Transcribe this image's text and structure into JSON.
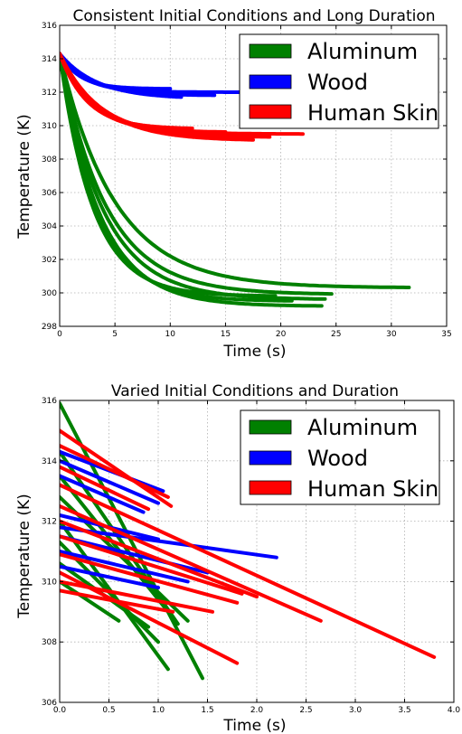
{
  "chart_data": [
    {
      "type": "line",
      "title": "Consistent Initial Conditions and Long Duration",
      "xlabel": "Time (s)",
      "ylabel": "Temperature (K)",
      "xlim": [
        0,
        35
      ],
      "ylim": [
        298,
        316
      ],
      "xticks": [
        "0",
        "5",
        "10",
        "15",
        "20",
        "25",
        "30",
        "35"
      ],
      "yticks": [
        "298",
        "300",
        "302",
        "304",
        "306",
        "308",
        "310",
        "312",
        "314",
        "316"
      ],
      "grid": true,
      "legend_position": "top-right",
      "legend": [
        {
          "label": "Aluminum",
          "color": "#008000"
        },
        {
          "label": "Wood",
          "color": "#0000ff"
        },
        {
          "label": "Human Skin",
          "color": "#ff0000"
        }
      ],
      "series": [
        {
          "name": "Aluminum",
          "color": "#008000",
          "curves": [
            {
              "t0": 0,
              "T0": 314.3,
              "Tinf": 300.3,
              "tau": 5.0,
              "tend": 31.6
            },
            {
              "t0": 0,
              "T0": 314.3,
              "Tinf": 299.9,
              "tau": 4.2,
              "tend": 24.6
            },
            {
              "t0": 0,
              "T0": 314.3,
              "Tinf": 299.6,
              "tau": 3.9,
              "tend": 24.0
            },
            {
              "t0": 0,
              "T0": 314.3,
              "Tinf": 299.2,
              "tau": 3.6,
              "tend": 23.7
            },
            {
              "t0": 0,
              "T0": 314.3,
              "Tinf": 299.5,
              "tau": 3.3,
              "tend": 21.0
            },
            {
              "t0": 0,
              "T0": 314.3,
              "Tinf": 299.8,
              "tau": 3.0,
              "tend": 19.5
            }
          ]
        },
        {
          "name": "Wood",
          "color": "#0000ff",
          "curves": [
            {
              "t0": 0,
              "T0": 314.3,
              "Tinf": 312.0,
              "tau": 2.2,
              "tend": 17.0
            },
            {
              "t0": 0,
              "T0": 314.3,
              "Tinf": 311.8,
              "tau": 2.8,
              "tend": 14.0
            },
            {
              "t0": 0,
              "T0": 314.3,
              "Tinf": 311.6,
              "tau": 3.4,
              "tend": 11.0
            },
            {
              "t0": 0,
              "T0": 314.3,
              "Tinf": 312.2,
              "tau": 1.8,
              "tend": 10.0
            }
          ]
        },
        {
          "name": "Human Skin",
          "color": "#ff0000",
          "curves": [
            {
              "t0": 0,
              "T0": 314.3,
              "Tinf": 309.5,
              "tau": 3.2,
              "tend": 22.0
            },
            {
              "t0": 0,
              "T0": 314.3,
              "Tinf": 309.3,
              "tau": 3.6,
              "tend": 19.0
            },
            {
              "t0": 0,
              "T0": 314.3,
              "Tinf": 309.1,
              "tau": 3.8,
              "tend": 17.5
            },
            {
              "t0": 0,
              "T0": 314.3,
              "Tinf": 309.6,
              "tau": 2.8,
              "tend": 15.0
            },
            {
              "t0": 0,
              "T0": 314.3,
              "Tinf": 309.8,
              "tau": 2.5,
              "tend": 12.0
            }
          ]
        }
      ]
    },
    {
      "type": "line",
      "title": "Varied Initial Conditions and Duration",
      "xlabel": "Time (s)",
      "ylabel": "Temperature (K)",
      "xlim": [
        0.0,
        4.0
      ],
      "ylim": [
        306,
        316
      ],
      "xticks": [
        "0.0",
        "0.5",
        "1.0",
        "1.5",
        "2.0",
        "2.5",
        "3.0",
        "3.5",
        "4.0"
      ],
      "yticks": [
        "306",
        "308",
        "310",
        "312",
        "314",
        "316"
      ],
      "grid": true,
      "legend_position": "top-right",
      "legend": [
        {
          "label": "Aluminum",
          "color": "#008000"
        },
        {
          "label": "Wood",
          "color": "#0000ff"
        },
        {
          "label": "Human Skin",
          "color": "#ff0000"
        }
      ],
      "series": [
        {
          "name": "Aluminum",
          "color": "#008000",
          "lines": [
            [
              [
                0.0,
                315.9
              ],
              [
                1.45,
                306.8
              ]
            ],
            [
              [
                0.0,
                314.3
              ],
              [
                1.2,
                308.6
              ]
            ],
            [
              [
                0.0,
                313.5
              ],
              [
                1.1,
                309.0
              ]
            ],
            [
              [
                0.0,
                312.8
              ],
              [
                1.3,
                308.7
              ]
            ],
            [
              [
                0.0,
                312.0
              ],
              [
                1.1,
                307.1
              ]
            ],
            [
              [
                0.0,
                311.3
              ],
              [
                1.0,
                308.0
              ]
            ],
            [
              [
                0.0,
                310.6
              ],
              [
                0.9,
                308.5
              ]
            ],
            [
              [
                0.0,
                310.0
              ],
              [
                0.6,
                308.7
              ]
            ]
          ]
        },
        {
          "name": "Wood",
          "color": "#0000ff",
          "lines": [
            [
              [
                0.0,
                314.3
              ],
              [
                1.05,
                313.0
              ]
            ],
            [
              [
                0.0,
                314.0
              ],
              [
                1.0,
                312.6
              ]
            ],
            [
              [
                0.0,
                313.5
              ],
              [
                0.85,
                312.3
              ]
            ],
            [
              [
                0.0,
                312.2
              ],
              [
                1.0,
                311.4
              ]
            ],
            [
              [
                0.0,
                311.8
              ],
              [
                2.2,
                310.8
              ]
            ],
            [
              [
                0.0,
                311.5
              ],
              [
                1.5,
                310.3
              ]
            ],
            [
              [
                0.0,
                311.0
              ],
              [
                1.3,
                310.0
              ]
            ],
            [
              [
                0.0,
                310.5
              ],
              [
                1.0,
                309.8
              ]
            ]
          ]
        },
        {
          "name": "Human Skin",
          "color": "#ff0000",
          "lines": [
            [
              [
                0.0,
                315.0
              ],
              [
                1.13,
                312.5
              ]
            ],
            [
              [
                0.0,
                314.5
              ],
              [
                1.1,
                312.8
              ]
            ],
            [
              [
                0.0,
                313.8
              ],
              [
                0.9,
                312.4
              ]
            ],
            [
              [
                0.0,
                313.2
              ],
              [
                3.8,
                307.5
              ]
            ],
            [
              [
                0.0,
                312.5
              ],
              [
                2.65,
                308.7
              ]
            ],
            [
              [
                0.0,
                312.0
              ],
              [
                2.0,
                309.5
              ]
            ],
            [
              [
                0.0,
                311.5
              ],
              [
                1.85,
                309.6
              ]
            ],
            [
              [
                0.0,
                310.9
              ],
              [
                1.8,
                309.3
              ]
            ],
            [
              [
                0.0,
                310.3
              ],
              [
                1.8,
                307.3
              ]
            ],
            [
              [
                0.0,
                310.0
              ],
              [
                1.55,
                309.0
              ]
            ],
            [
              [
                0.0,
                309.7
              ],
              [
                1.15,
                309.0
              ]
            ]
          ]
        }
      ]
    }
  ]
}
